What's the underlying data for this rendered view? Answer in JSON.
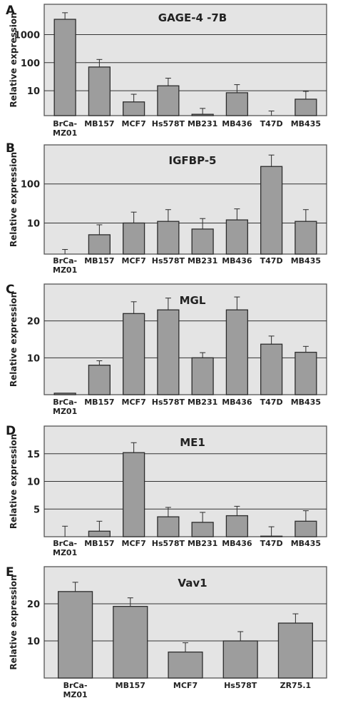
{
  "chart_data": [
    {
      "panel": "A",
      "type": "bar",
      "title": "GAGE-4 -7B",
      "ylabel": "Relative expression",
      "yscale": "log",
      "ylim": [
        1.3,
        12000
      ],
      "yticks": [
        10,
        100,
        1000
      ],
      "ytick_labels": [
        "10",
        "100",
        "1000"
      ],
      "grid": true,
      "categories": [
        "BrCa-MZ01",
        "MB157",
        "MCF7",
        "Hs578T",
        "MB231",
        "MB436",
        "T47D",
        "MB435"
      ],
      "values": [
        3500,
        70,
        4,
        15,
        1.45,
        8.5,
        1.1,
        5
      ],
      "errors": [
        2500,
        60,
        3.5,
        13,
        0.9,
        8,
        0.8,
        4.5
      ]
    },
    {
      "panel": "B",
      "type": "bar",
      "title": "IGFBP-5",
      "ylabel": "Relative expression",
      "yscale": "log",
      "ylim": [
        1.6,
        1000
      ],
      "yticks": [
        10,
        100
      ],
      "ytick_labels": [
        "10",
        "100"
      ],
      "grid": true,
      "categories": [
        "BrCa-MZ01",
        "MB157",
        "MCF7",
        "Hs578T",
        "MB231",
        "MB436",
        "T47D",
        "MB435"
      ],
      "values": [
        1.3,
        5,
        10,
        11,
        7,
        12,
        280,
        11
      ],
      "errors": [
        0.8,
        4,
        9,
        11,
        6,
        11,
        270,
        11
      ]
    },
    {
      "panel": "C",
      "type": "bar",
      "title": "MGL",
      "ylabel": "Relative expression",
      "yscale": "linear",
      "ylim": [
        0,
        30
      ],
      "yticks": [
        10,
        20
      ],
      "ytick_labels": [
        "10",
        "20"
      ],
      "grid": true,
      "categories": [
        "BrCa-MZ01",
        "MB157",
        "MCF7",
        "Hs578T",
        "MB231",
        "MB436",
        "T47D",
        "MB435"
      ],
      "values": [
        0.4,
        8,
        22,
        23,
        10,
        23,
        13.7,
        11.5
      ],
      "errors": [
        0,
        1.2,
        3.2,
        3.2,
        1.4,
        3.5,
        2.2,
        1.6
      ]
    },
    {
      "panel": "D",
      "type": "bar",
      "title": "ME1",
      "ylabel": "Relative expression",
      "yscale": "linear",
      "ylim": [
        0,
        20
      ],
      "yticks": [
        5,
        10,
        15
      ],
      "ytick_labels": [
        "5",
        "10",
        "15"
      ],
      "grid": true,
      "categories": [
        "BrCa-MZ01",
        "MB157",
        "MCF7",
        "Hs578T",
        "MB231",
        "MB436",
        "T47D",
        "MB435"
      ],
      "values": [
        0,
        1,
        15.2,
        3.6,
        2.6,
        3.8,
        0.1,
        2.8
      ],
      "errors": [
        1.9,
        1.8,
        1.8,
        1.7,
        1.8,
        1.7,
        1.7,
        1.9
      ]
    },
    {
      "panel": "E",
      "type": "bar",
      "title": "Vav1",
      "ylabel": "Relative expression",
      "yscale": "linear",
      "ylim": [
        0,
        30
      ],
      "yticks": [
        10,
        20
      ],
      "ytick_labels": [
        "10",
        "20"
      ],
      "grid": true,
      "categories": [
        "BrCa-MZ01",
        "MB157",
        "MCF7",
        "Hs578T",
        "ZR75.1"
      ],
      "values": [
        23.3,
        19.3,
        7,
        10,
        14.8
      ],
      "errors": [
        2.5,
        2.3,
        2.5,
        2.5,
        2.5
      ]
    }
  ]
}
